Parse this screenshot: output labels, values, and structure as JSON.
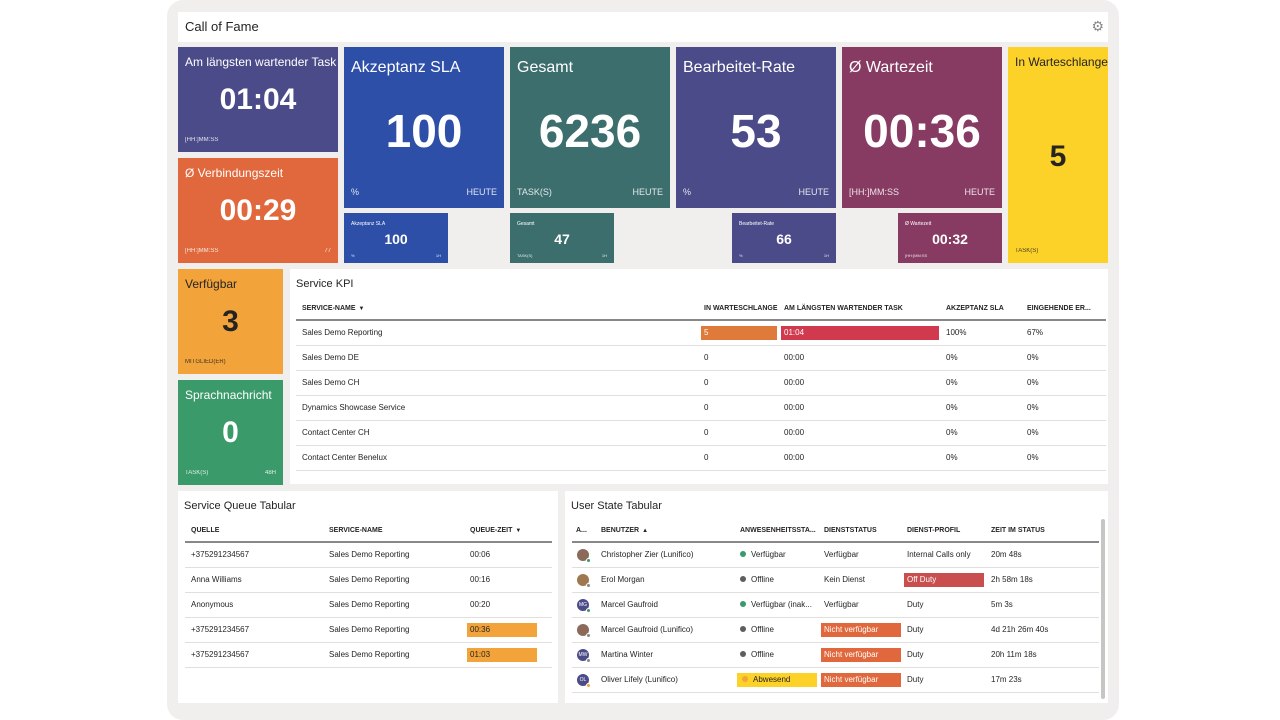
{
  "dashboard": {
    "title": "Call of Fame",
    "settings_icon": "gear-icon"
  },
  "tiles": {
    "longest_waiting": {
      "label": "Am längsten wartender Task",
      "value": "01:04",
      "unit": "[HH:]MM:SS",
      "color": "#4b4b89"
    },
    "avg_connection": {
      "label": "Ø Verbindungszeit",
      "value": "00:29",
      "unit": "[HH:]MM:SS",
      "count": "77",
      "color": "#e0683c"
    },
    "sla": {
      "label": "Akzeptanz SLA",
      "value": "100",
      "unit": "%",
      "period": "HEUTE",
      "color": "#2d4fa8"
    },
    "total": {
      "label": "Gesamt",
      "value": "6236",
      "unit": "TASK(S)",
      "period": "HEUTE",
      "color": "#3c6e6e"
    },
    "rate": {
      "label": "Bearbeitet-Rate",
      "value": "53",
      "unit": "%",
      "period": "HEUTE",
      "color": "#4b4b89"
    },
    "avg_wait": {
      "label": "Ø Wartezeit",
      "value": "00:36",
      "unit": "[HH:]MM:SS",
      "period": "HEUTE",
      "color": "#873b62"
    },
    "in_queue": {
      "label": "In Warteschlange",
      "value": "5",
      "unit": "TASK(S)",
      "color": "#fcd228"
    },
    "mini_sla": {
      "label": "Akzeptanz SLA",
      "value": "100",
      "unit": "%",
      "period": "1H",
      "color": "#2d4fa8"
    },
    "mini_total": {
      "label": "Gesamt",
      "value": "47",
      "unit": "TASK(S)",
      "period": "1H",
      "color": "#3c6e6e"
    },
    "mini_rate": {
      "label": "Bearbeitet-Rate",
      "value": "66",
      "unit": "%",
      "period": "1H",
      "color": "#4b4b89"
    },
    "mini_wait": {
      "label": "Ø Wartezeit",
      "value": "00:32",
      "unit": "[HH:]MM:SS",
      "color": "#873b62"
    },
    "available": {
      "label": "Verfügbar",
      "value": "3",
      "unit": "MITGLIED(ER)",
      "color": "#f2a33a"
    },
    "voicemail": {
      "label": "Sprachnachricht",
      "value": "0",
      "unit": "TASK(S)",
      "period": "48H",
      "color": "#3a9a6a"
    }
  },
  "service_kpi": {
    "title": "Service KPI",
    "columns": [
      "SERVICE-NAME",
      "IN WARTESCHLANGE",
      "AM LÄNGSTEN WARTENDER TASK",
      "AKZEPTANZ SLA",
      "EINGEHENDE ER..."
    ],
    "rows": [
      [
        "Sales Demo Reporting",
        "5",
        "01:04",
        "100%",
        "67%"
      ],
      [
        "Sales Demo DE",
        "0",
        "00:00",
        "0%",
        "0%"
      ],
      [
        "Sales Demo CH",
        "0",
        "00:00",
        "0%",
        "0%"
      ],
      [
        "Dynamics Showcase Service",
        "0",
        "00:00",
        "0%",
        "0%"
      ],
      [
        "Contact Center CH",
        "0",
        "00:00",
        "0%",
        "0%"
      ],
      [
        "Contact Center Benelux",
        "0",
        "00:00",
        "0%",
        "0%"
      ]
    ]
  },
  "service_queue": {
    "title": "Service Queue Tabular",
    "columns": [
      "QUELLE",
      "SERVICE-NAME",
      "QUEUE-ZEIT"
    ],
    "rows": [
      [
        "+375291234567",
        "Sales Demo Reporting",
        "00:06"
      ],
      [
        "Anna Williams",
        "Sales Demo Reporting",
        "00:16"
      ],
      [
        "Anonymous",
        "Sales Demo Reporting",
        "00:20"
      ],
      [
        "+375291234567",
        "Sales Demo Reporting",
        "00:36"
      ],
      [
        "+375291234567",
        "Sales Demo Reporting",
        "01:03"
      ]
    ]
  },
  "user_state": {
    "title": "User State Tabular",
    "columns": [
      "A...",
      "BENUTZER",
      "ANWESENHEITSSTA...",
      "DIENSTSTATUS",
      "DIENST-PROFIL",
      "ZEIT IM STATUS"
    ],
    "rows": [
      [
        "Christopher Zier (Lunifico)",
        "Verfügbar",
        "Verfügbar",
        "Internal Calls only",
        "20m 48s"
      ],
      [
        "Erol Morgan",
        "Offline",
        "Kein Dienst",
        "Off Duty",
        "2h 58m 18s"
      ],
      [
        "Marcel Gaufroid",
        "Verfügbar (inak...",
        "Verfügbar",
        "Duty",
        "5m 3s"
      ],
      [
        "Marcel Gaufroid (Lunifico)",
        "Offline",
        "Nicht verfügbar",
        "Duty",
        "4d 21h 26m 40s"
      ],
      [
        "Martina Winter",
        "Offline",
        "Nicht verfügbar",
        "Duty",
        "20h 11m 18s"
      ],
      [
        "Oliver Lifely (Lunifico)",
        "Abwesend",
        "Nicht verfügbar",
        "Duty",
        "17m 23s"
      ]
    ]
  }
}
